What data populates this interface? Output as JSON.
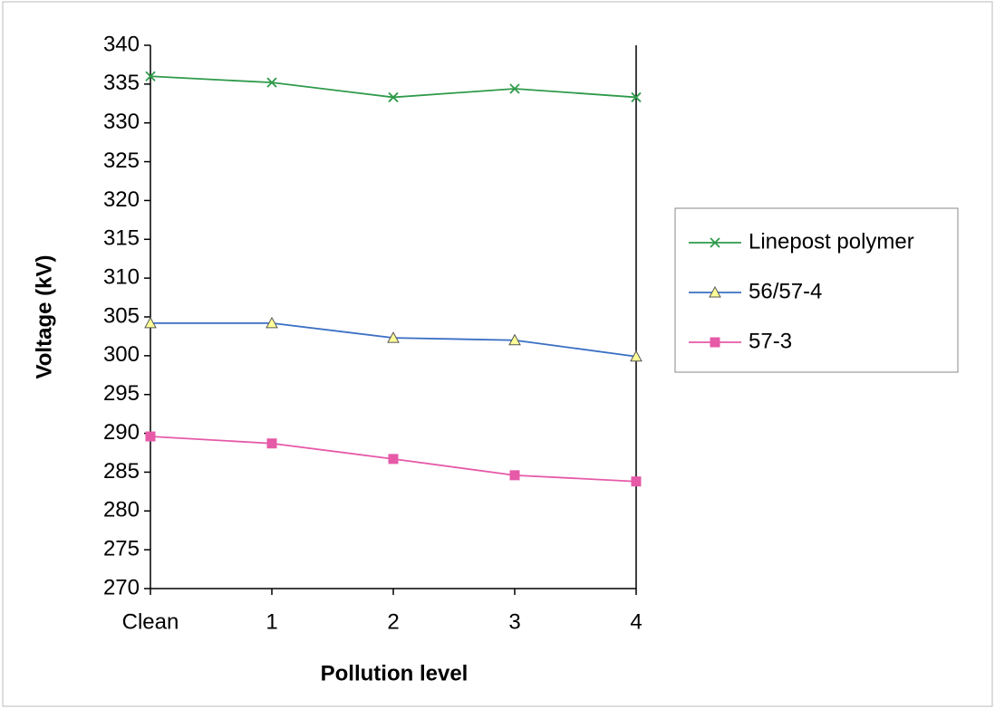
{
  "chart_data": {
    "type": "line",
    "x_label": "Pollution level",
    "y_label": "Voltage (kV)",
    "categories": [
      "Clean",
      "1",
      "2",
      "3",
      "4"
    ],
    "series": [
      {
        "name": "Linepost polymer",
        "color": "#2e9a4a",
        "marker": "x",
        "values": [
          336.0,
          335.2,
          333.3,
          334.4,
          333.3
        ]
      },
      {
        "name": "56/57-4",
        "color": "#3a6fc4",
        "marker": "triangle",
        "values": [
          304.2,
          304.2,
          302.3,
          302.0,
          299.9
        ]
      },
      {
        "name": "57-3",
        "color": "#e65aa8",
        "marker": "square",
        "values": [
          289.6,
          288.7,
          286.7,
          284.6,
          283.8
        ]
      }
    ],
    "ylim": [
      270,
      340
    ],
    "yticks": [
      270,
      275,
      280,
      285,
      290,
      295,
      300,
      305,
      310,
      315,
      320,
      325,
      330,
      335,
      340
    ],
    "grid": false,
    "legend": "right"
  }
}
